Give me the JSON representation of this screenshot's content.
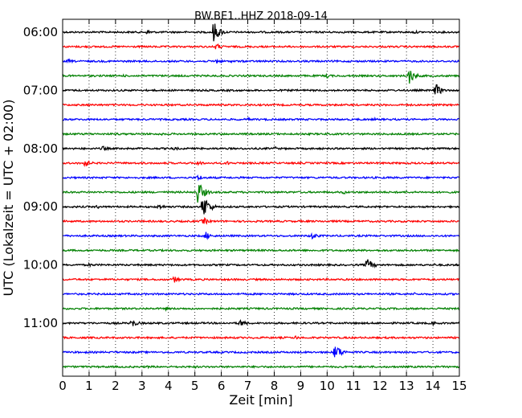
{
  "chart_data": {
    "type": "line",
    "title": "BW.BE1..HHZ 2018-09-14",
    "xlabel": "Zeit  [min]",
    "ylabel": "UTC (Lokalzeit = UTC + 02:00)",
    "xlim": [
      0,
      15
    ],
    "x_ticks": [
      "0",
      "1",
      "2",
      "3",
      "4",
      "5",
      "6",
      "7",
      "8",
      "9",
      "10",
      "11",
      "12",
      "13",
      "14",
      "15"
    ],
    "y_tick_labels": [
      "06:00",
      "07:00",
      "08:00",
      "09:00",
      "10:00",
      "11:00"
    ],
    "row_start": "06:00",
    "row_interval_min": 15,
    "grid": true,
    "colors": [
      "#000000",
      "#ff0000",
      "#0000ff",
      "#008000"
    ],
    "traces": [
      {
        "start": "06:00",
        "color": "#000000",
        "events": [
          {
            "t": 3.2,
            "amp": 0.4
          },
          {
            "t": 5.7,
            "amp": 1.6
          },
          {
            "t": 7.5,
            "amp": 0.15
          },
          {
            "t": 11.5,
            "amp": 0.15
          },
          {
            "t": 13.3,
            "amp": 0.25
          }
        ]
      },
      {
        "start": "06:15",
        "color": "#ff0000",
        "events": [
          {
            "t": 5.8,
            "amp": 0.5
          }
        ]
      },
      {
        "start": "06:30",
        "color": "#0000ff",
        "events": [
          {
            "t": 0.2,
            "amp": 0.3
          },
          {
            "t": 5.8,
            "amp": 0.4
          },
          {
            "t": 6.4,
            "amp": 0.2
          }
        ]
      },
      {
        "start": "06:45",
        "color": "#008000",
        "events": [
          {
            "t": 10.0,
            "amp": 0.35
          },
          {
            "t": 13.1,
            "amp": 1.2
          },
          {
            "t": 2.3,
            "amp": 0.2
          }
        ]
      },
      {
        "start": "07:00",
        "color": "#000000",
        "events": [
          {
            "t": 14.1,
            "amp": 1.0
          },
          {
            "t": 2.8,
            "amp": 0.2
          },
          {
            "t": 6.3,
            "amp": 0.2
          }
        ]
      },
      {
        "start": "07:15",
        "color": "#ff0000",
        "events": [
          {
            "t": 1.0,
            "amp": 0.15
          }
        ]
      },
      {
        "start": "07:30",
        "color": "#0000ff",
        "events": [
          {
            "t": 7.0,
            "amp": 0.25
          },
          {
            "t": 11.8,
            "amp": 0.2
          },
          {
            "t": 14.5,
            "amp": 0.15
          }
        ]
      },
      {
        "start": "07:45",
        "color": "#008000",
        "events": [
          {
            "t": 2.1,
            "amp": 0.2
          },
          {
            "t": 3.7,
            "amp": 0.2
          },
          {
            "t": 8.7,
            "amp": 0.15
          }
        ]
      },
      {
        "start": "08:00",
        "color": "#000000",
        "events": [
          {
            "t": 1.5,
            "amp": 0.4
          },
          {
            "t": 2.9,
            "amp": 0.2
          },
          {
            "t": 4.2,
            "amp": 0.3
          },
          {
            "t": 8.0,
            "amp": 0.3
          }
        ]
      },
      {
        "start": "08:15",
        "color": "#ff0000",
        "events": [
          {
            "t": 0.8,
            "amp": 0.7
          },
          {
            "t": 2.9,
            "amp": 0.2
          },
          {
            "t": 5.1,
            "amp": 0.4
          },
          {
            "t": 6.2,
            "amp": 0.3
          }
        ]
      },
      {
        "start": "08:30",
        "color": "#0000ff",
        "events": [
          {
            "t": 5.1,
            "amp": 0.5
          },
          {
            "t": 8.0,
            "amp": 0.15
          },
          {
            "t": 10.4,
            "amp": 0.15
          }
        ]
      },
      {
        "start": "08:45",
        "color": "#008000",
        "events": [
          {
            "t": 5.1,
            "amp": 1.8
          },
          {
            "t": 10.6,
            "amp": 0.3
          },
          {
            "t": 13.0,
            "amp": 0.2
          }
        ]
      },
      {
        "start": "09:00",
        "color": "#000000",
        "events": [
          {
            "t": 3.6,
            "amp": 0.5
          },
          {
            "t": 5.3,
            "amp": 2.0
          },
          {
            "t": 1.3,
            "amp": 0.3
          },
          {
            "t": 7.5,
            "amp": 0.2
          }
        ]
      },
      {
        "start": "09:15",
        "color": "#ff0000",
        "events": [
          {
            "t": 5.3,
            "amp": 0.6
          },
          {
            "t": 9.0,
            "amp": 0.15
          },
          {
            "t": 10.4,
            "amp": 0.2
          }
        ]
      },
      {
        "start": "09:30",
        "color": "#0000ff",
        "events": [
          {
            "t": 5.4,
            "amp": 0.6
          },
          {
            "t": 9.4,
            "amp": 0.6
          },
          {
            "t": 13.3,
            "amp": 0.15
          }
        ]
      },
      {
        "start": "09:45",
        "color": "#008000",
        "events": [
          {
            "t": 3.0,
            "amp": 0.15
          },
          {
            "t": 11.0,
            "amp": 0.15
          }
        ]
      },
      {
        "start": "10:00",
        "color": "#000000",
        "events": [
          {
            "t": 1.0,
            "amp": 0.3
          },
          {
            "t": 11.5,
            "amp": 1.0
          },
          {
            "t": 14.0,
            "amp": 0.25
          }
        ]
      },
      {
        "start": "10:15",
        "color": "#ff0000",
        "events": [
          {
            "t": 4.2,
            "amp": 0.5
          },
          {
            "t": 2.0,
            "amp": 0.15
          },
          {
            "t": 11.4,
            "amp": 0.15
          }
        ]
      },
      {
        "start": "10:30",
        "color": "#0000ff",
        "events": [
          {
            "t": 2.5,
            "amp": 0.15
          },
          {
            "t": 13.3,
            "amp": 0.2
          }
        ]
      },
      {
        "start": "10:45",
        "color": "#008000",
        "events": [
          {
            "t": 3.9,
            "amp": 0.25
          },
          {
            "t": 6.5,
            "amp": 0.15
          }
        ]
      },
      {
        "start": "11:00",
        "color": "#000000",
        "events": [
          {
            "t": 2.6,
            "amp": 0.7
          },
          {
            "t": 6.7,
            "amp": 0.6
          },
          {
            "t": 14.0,
            "amp": 0.3
          },
          {
            "t": 12.5,
            "amp": 0.15
          }
        ]
      },
      {
        "start": "11:15",
        "color": "#ff0000",
        "events": [
          {
            "t": 8.8,
            "amp": 0.3
          },
          {
            "t": 7.2,
            "amp": 0.15
          }
        ]
      },
      {
        "start": "11:30",
        "color": "#0000ff",
        "events": [
          {
            "t": 10.3,
            "amp": 1.3
          },
          {
            "t": 12.4,
            "amp": 0.2
          }
        ]
      },
      {
        "start": "11:45",
        "color": "#008000",
        "events": [
          {
            "t": 3.2,
            "amp": 0.2
          },
          {
            "t": 5.0,
            "amp": 0.2
          }
        ]
      }
    ]
  }
}
